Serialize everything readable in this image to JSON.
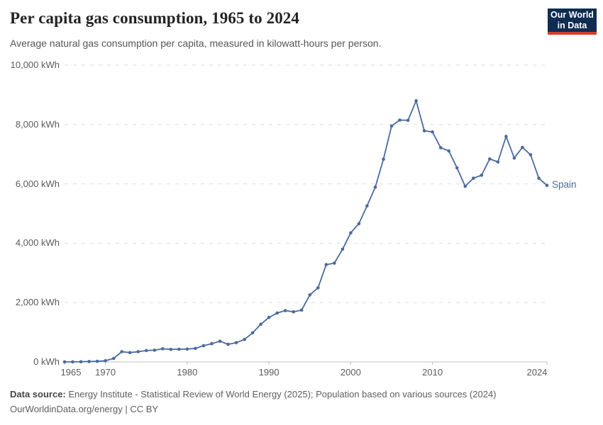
{
  "header": {
    "title": "Per capita gas consumption, 1965 to 2024",
    "subtitle": "Average natural gas consumption per capita, measured in kilowatt-hours per person."
  },
  "logo": {
    "line1": "Our World",
    "line2": "in Data"
  },
  "chart_data": {
    "type": "line",
    "title": "Per capita gas consumption, 1965 to 2024",
    "xlabel": "",
    "ylabel": "",
    "unit": "kWh",
    "xlim": [
      1965,
      2024
    ],
    "ylim": [
      0,
      10000
    ],
    "grid": "horizontal-dashed",
    "legend": "end-of-line-label",
    "x_ticks": [
      1965,
      1970,
      1980,
      1990,
      2000,
      2010,
      2024
    ],
    "y_ticks": [
      0,
      2000,
      4000,
      6000,
      8000,
      10000
    ],
    "y_tick_labels": [
      "0 kWh",
      "2,000 kWh",
      "4,000 kWh",
      "6,000 kWh",
      "8,000 kWh",
      "10,000 kWh"
    ],
    "x": [
      1965,
      1966,
      1967,
      1968,
      1969,
      1970,
      1971,
      1972,
      1973,
      1974,
      1975,
      1976,
      1977,
      1978,
      1979,
      1980,
      1981,
      1982,
      1983,
      1984,
      1985,
      1986,
      1987,
      1988,
      1989,
      1990,
      1991,
      1992,
      1993,
      1994,
      1995,
      1996,
      1997,
      1998,
      1999,
      2000,
      2001,
      2002,
      2003,
      2004,
      2005,
      2006,
      2007,
      2008,
      2009,
      2010,
      2011,
      2012,
      2013,
      2014,
      2015,
      2016,
      2017,
      2018,
      2019,
      2020,
      2021,
      2022,
      2023,
      2024
    ],
    "series": [
      {
        "name": "Spain",
        "color": "#4c6a9e",
        "values": [
          2,
          3,
          8,
          15,
          25,
          40,
          120,
          345,
          315,
          345,
          385,
          395,
          445,
          425,
          430,
          435,
          455,
          550,
          615,
          700,
          595,
          650,
          760,
          980,
          1270,
          1500,
          1650,
          1730,
          1690,
          1750,
          2260,
          2500,
          3280,
          3330,
          3800,
          4350,
          4660,
          5260,
          5890,
          6830,
          7950,
          8150,
          8140,
          8800,
          7790,
          7750,
          7220,
          7110,
          6540,
          5920,
          6190,
          6290,
          6840,
          6740,
          7600,
          6870,
          7230,
          6980,
          6190,
          5950
        ]
      }
    ]
  },
  "footer": {
    "datasource_label": "Data source:",
    "datasource_text": "Energy Institute - Statistical Review of World Energy (2025); Population based on various sources (2024)",
    "license_line": "OurWorldinData.org/energy | CC BY"
  },
  "colors": {
    "line": "#4c6a9e",
    "grid": "#dedede",
    "axis": "#c2c2c2",
    "tick_text": "#5b5b5b",
    "logo_bg": "#0f2d52",
    "logo_accent": "#d43e2c"
  }
}
